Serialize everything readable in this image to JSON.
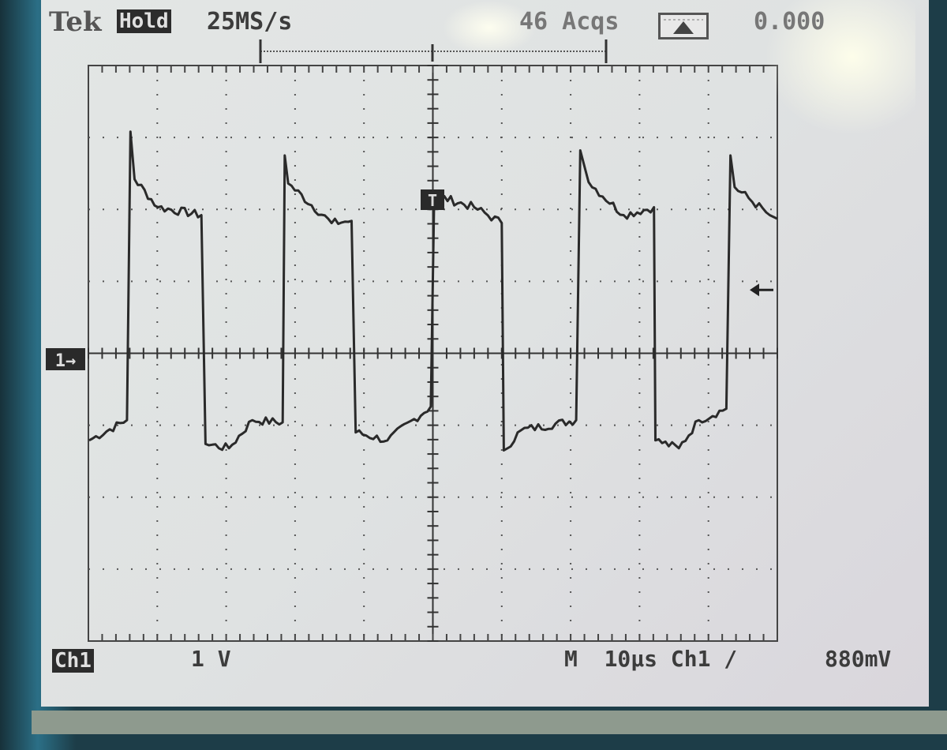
{
  "header": {
    "brand": "Tek",
    "mode": "Hold",
    "sample_rate": "25MS/s",
    "acquisitions": "46 Acqs",
    "trigger_time": "0.000"
  },
  "footer": {
    "channel": "Ch1",
    "volts_per_div": "1 V",
    "timebase": "M  10µs Ch1 /",
    "trigger_level": "880mV"
  },
  "markers": {
    "ground": "1→",
    "trigger_position": "T"
  },
  "colors": {
    "trace": "#2a2a2a",
    "screen": "#e0e3e3",
    "grid": "#4a4a4a"
  },
  "chart_data": {
    "type": "line",
    "xlabel": "",
    "ylabel": "",
    "x_unit": "µs",
    "y_unit": "V",
    "xlim": [
      -50,
      50
    ],
    "ylim": [
      -4,
      4
    ],
    "grid": true,
    "x_divisions": 10,
    "y_divisions": 8,
    "trigger_level_v": 0.88,
    "series": [
      {
        "points": [
          [
            -49.9,
            -1.21
          ],
          [
            -44.4,
            -0.93
          ],
          [
            -43.9,
            3.08
          ],
          [
            -43.3,
            2.42
          ],
          [
            -39.9,
            2.03
          ],
          [
            -33.6,
            1.92
          ],
          [
            -33.0,
            -1.26
          ],
          [
            -29.6,
            -1.32
          ],
          [
            -26.2,
            -0.93
          ],
          [
            -21.8,
            -0.96
          ],
          [
            -21.5,
            2.75
          ],
          [
            -21.0,
            2.36
          ],
          [
            -14.7,
            1.81
          ],
          [
            -11.8,
            1.84
          ],
          [
            -11.2,
            -1.1
          ],
          [
            -6.6,
            -1.21
          ],
          [
            -0.3,
            -0.74
          ],
          [
            0.2,
            2.2
          ],
          [
            6.0,
            2.03
          ],
          [
            10.0,
            1.81
          ],
          [
            10.3,
            -1.35
          ],
          [
            12.8,
            -1.07
          ],
          [
            20.8,
            -0.93
          ],
          [
            21.4,
            2.82
          ],
          [
            22.6,
            2.38
          ],
          [
            27.7,
            1.92
          ],
          [
            32.1,
            2.03
          ],
          [
            32.3,
            -1.21
          ],
          [
            35.7,
            -1.32
          ],
          [
            38.6,
            -0.93
          ],
          [
            42.6,
            -0.77
          ],
          [
            43.2,
            2.75
          ],
          [
            43.8,
            2.31
          ],
          [
            48.9,
            1.92
          ],
          [
            50,
            1.87
          ]
        ]
      }
    ]
  }
}
